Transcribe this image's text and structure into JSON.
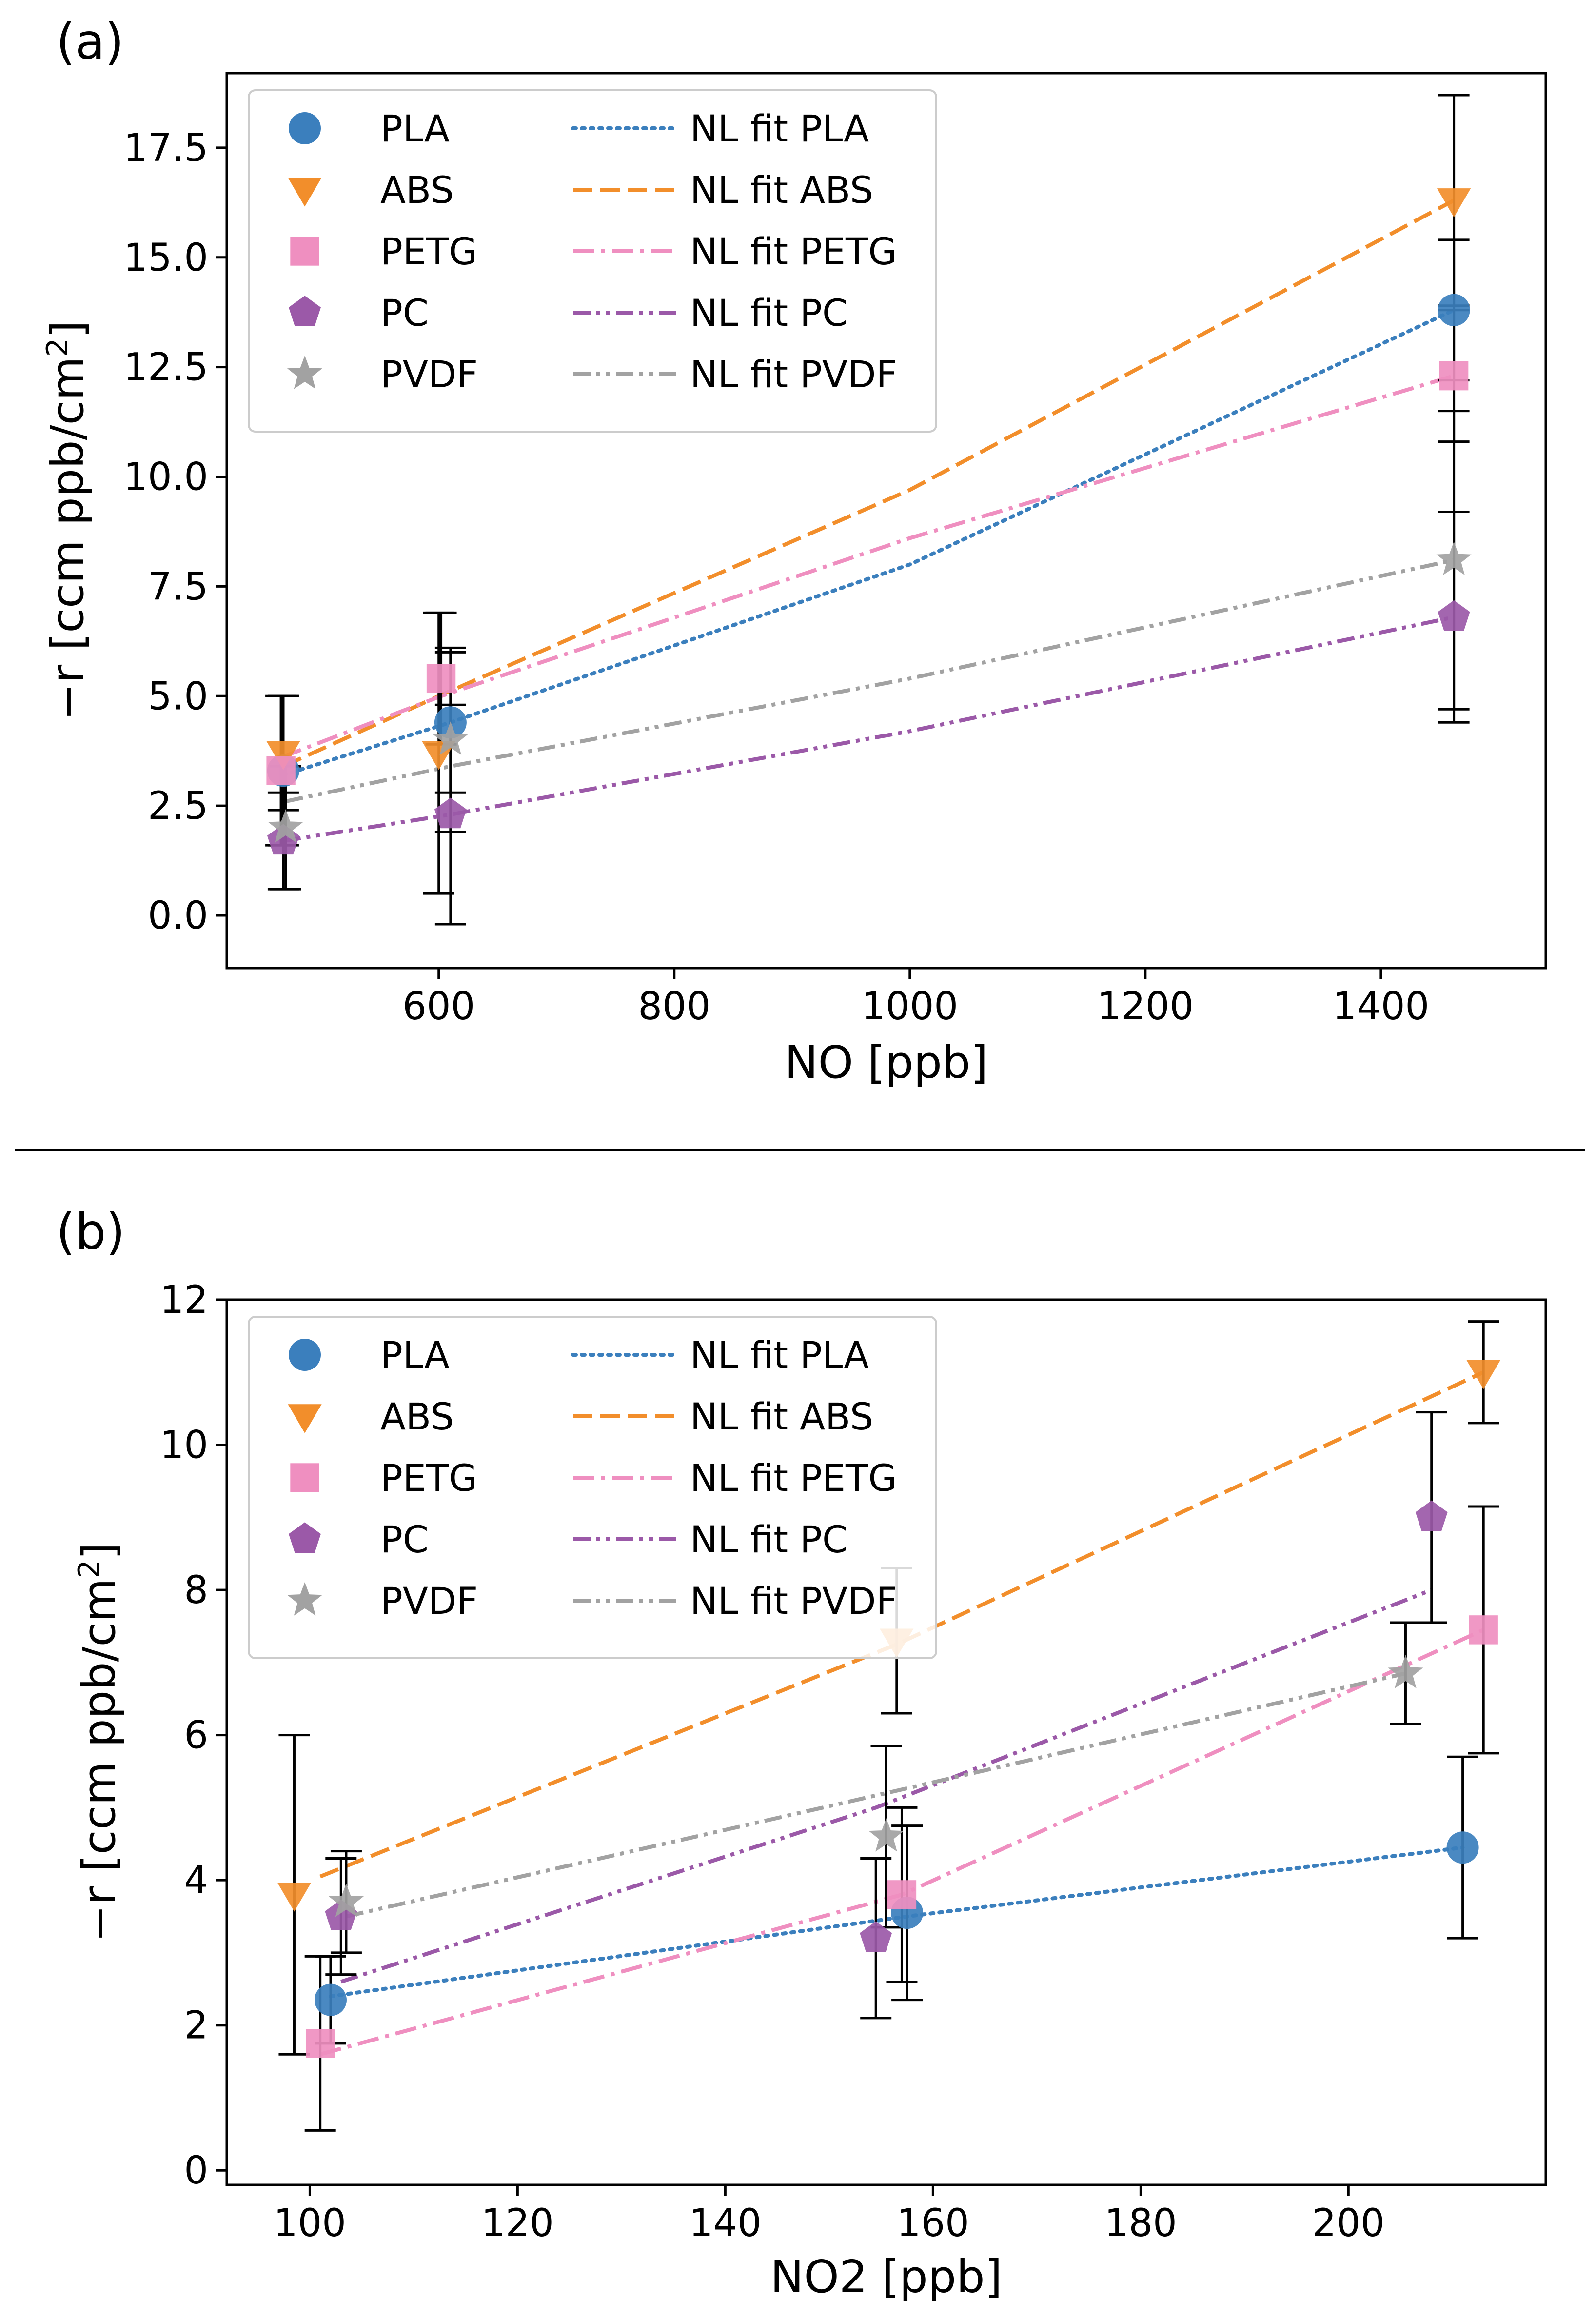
{
  "chart_data": [
    {
      "type": "scatter",
      "panel_label": "(a)",
      "xlabel": "NO [ppb]",
      "ylabel": "−r [ccm ppb/cm²]",
      "ylabel_base": "−r [ccm ppb/cm",
      "ylabel_sup": "2",
      "ylabel_close": "]",
      "xlim": [
        420,
        1540
      ],
      "ylim": [
        -1.2,
        19.2
      ],
      "xticks": [
        600,
        800,
        1000,
        1200,
        1400
      ],
      "xtick_labels": [
        "600",
        "800",
        "1000",
        "1200",
        "1400"
      ],
      "yticks": [
        0,
        2.5,
        5,
        7.5,
        10,
        12.5,
        15,
        17.5
      ],
      "ytick_labels": [
        "0.0",
        "2.5",
        "5.0",
        "7.5",
        "10.0",
        "12.5",
        "15.0",
        "17.5"
      ],
      "legend_position": "top-left",
      "series": [
        {
          "name": "PLA",
          "fit_name": "NL fit PLA",
          "color": "#3b7fbd",
          "marker": "circle",
          "dash": "dotted",
          "x": [
            468,
            610,
            1462
          ],
          "y": [
            3.3,
            4.4,
            13.8
          ],
          "err": [
            1.7,
            1.6,
            1.6
          ],
          "fit_x": [
            468,
            610,
            1000,
            1462
          ],
          "fit_y": [
            3.2,
            4.4,
            8.0,
            13.8
          ]
        },
        {
          "name": "ABS",
          "fit_name": "NL fit ABS",
          "color": "#f28e2b",
          "marker": "triangle-down",
          "dash": "dashed",
          "x": [
            468,
            600,
            1462
          ],
          "y": [
            3.7,
            3.7,
            16.3
          ],
          "err": [
            1.3,
            3.2,
            2.4
          ],
          "fit_x": [
            468,
            600,
            1000,
            1462
          ],
          "fit_y": [
            3.4,
            5.0,
            9.7,
            16.3
          ]
        },
        {
          "name": "PETG",
          "fit_name": "NL fit PETG",
          "color": "#ef8fc0",
          "marker": "square",
          "dash": "dashdot",
          "x": [
            466,
            602,
            1462
          ],
          "y": [
            3.3,
            5.4,
            12.3
          ],
          "err": [
            1.7,
            1.5,
            1.5
          ],
          "fit_x": [
            466,
            602,
            1000,
            1462
          ],
          "fit_y": [
            3.6,
            5.0,
            8.6,
            12.3
          ]
        },
        {
          "name": "PC",
          "fit_name": "NL fit PC",
          "color": "#9b59a8",
          "marker": "pentagon",
          "dash": "dashdotdot",
          "x": [
            468,
            610,
            1462
          ],
          "y": [
            1.7,
            2.3,
            6.8
          ],
          "err": [
            1.1,
            2.5,
            2.4
          ],
          "fit_x": [
            468,
            610,
            1000,
            1462
          ],
          "fit_y": [
            1.7,
            2.3,
            4.2,
            6.8
          ]
        },
        {
          "name": "PVDF",
          "fit_name": "NL fit PVDF",
          "color": "#a2a2a2",
          "marker": "star",
          "dash": "dashdotdot",
          "x": [
            470,
            610,
            1462
          ],
          "y": [
            2.0,
            4.0,
            8.1
          ],
          "err": [
            1.4,
            2.1,
            3.4
          ],
          "fit_x": [
            470,
            610,
            1000,
            1462
          ],
          "fit_y": [
            2.6,
            3.4,
            5.4,
            8.1
          ]
        }
      ]
    },
    {
      "type": "scatter",
      "panel_label": "(b)",
      "xlabel": "NO2 [ppb]",
      "ylabel": "−r [ccm ppb/cm²]",
      "ylabel_base": "−r [ccm ppb/cm",
      "ylabel_sup": "2",
      "ylabel_close": "]",
      "xlim": [
        92,
        219
      ],
      "ylim": [
        -0.2,
        12.0
      ],
      "xticks": [
        100,
        120,
        140,
        160,
        180,
        200
      ],
      "xtick_labels": [
        "100",
        "120",
        "140",
        "160",
        "180",
        "200"
      ],
      "yticks": [
        0,
        2,
        4,
        6,
        8,
        10,
        12
      ],
      "ytick_labels": [
        "0",
        "2",
        "4",
        "6",
        "8",
        "10",
        "12"
      ],
      "legend_position": "top-left",
      "series": [
        {
          "name": "PLA",
          "fit_name": "NL fit PLA",
          "color": "#3b7fbd",
          "marker": "circle",
          "dash": "dotted",
          "x": [
            102,
            157.5,
            211
          ],
          "y": [
            2.35,
            3.55,
            4.45
          ],
          "err": [
            0.6,
            1.2,
            1.25
          ],
          "fit_x": [
            102,
            157.5,
            211
          ],
          "fit_y": [
            2.4,
            3.5,
            4.45
          ]
        },
        {
          "name": "ABS",
          "fit_name": "NL fit ABS",
          "color": "#f28e2b",
          "marker": "triangle-down",
          "dash": "dashed",
          "x": [
            98.5,
            156.5,
            213
          ],
          "y": [
            3.8,
            7.3,
            11.0
          ],
          "err": [
            2.2,
            1.0,
            0.7
          ],
          "fit_x": [
            101,
            156.5,
            213
          ],
          "fit_y": [
            4.05,
            7.25,
            11.0
          ]
        },
        {
          "name": "PETG",
          "fit_name": "NL fit PETG",
          "color": "#ef8fc0",
          "marker": "square",
          "dash": "dashdot",
          "x": [
            101,
            157,
            213
          ],
          "y": [
            1.75,
            3.8,
            7.45
          ],
          "err": [
            1.2,
            1.2,
            1.7
          ],
          "fit_x": [
            101,
            157,
            213
          ],
          "fit_y": [
            1.6,
            3.8,
            7.45
          ]
        },
        {
          "name": "PC",
          "fit_name": "NL fit PC",
          "color": "#9b59a8",
          "marker": "pentagon",
          "dash": "dashdotdot",
          "x": [
            103,
            154.5,
            208
          ],
          "y": [
            3.5,
            3.2,
            9.0
          ],
          "err": [
            0.8,
            1.1,
            1.45
          ],
          "fit_x": [
            103,
            154.5,
            208
          ],
          "fit_y": [
            2.6,
            5.0,
            8.0
          ]
        },
        {
          "name": "PVDF",
          "fit_name": "NL fit PVDF",
          "color": "#a2a2a2",
          "marker": "star",
          "dash": "dashdotdot",
          "x": [
            103.5,
            155.5,
            205.5
          ],
          "y": [
            3.7,
            4.6,
            6.85
          ],
          "err": [
            0.7,
            1.25,
            0.7
          ],
          "fit_x": [
            103.5,
            155.5,
            205.5
          ],
          "fit_y": [
            3.5,
            5.2,
            6.85
          ]
        }
      ]
    }
  ]
}
